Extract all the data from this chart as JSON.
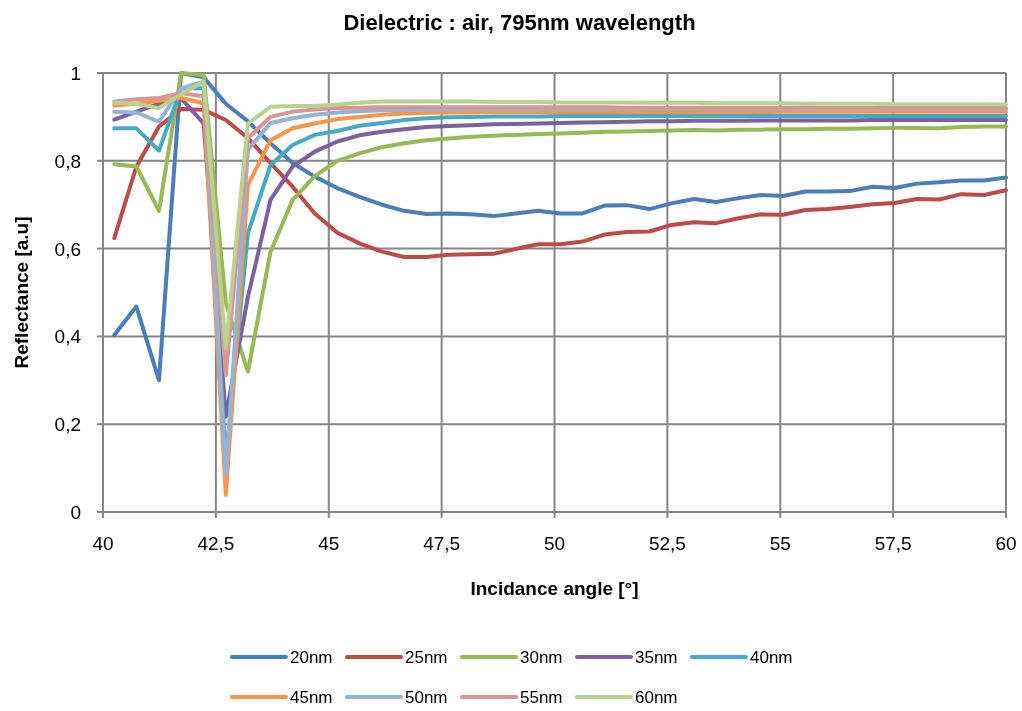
{
  "chart_data": {
    "type": "line",
    "title": "Dielectric : air, 795nm wavelength",
    "xlabel": "Incidance angle [°]",
    "ylabel": "Reflectance [a.u]",
    "x": [
      40.25,
      40.74,
      41.24,
      41.73,
      42.23,
      42.72,
      43.21,
      43.71,
      44.2,
      44.69,
      45.19,
      45.68,
      46.18,
      46.67,
      47.16,
      47.66,
      48.15,
      48.64,
      49.14,
      49.63,
      50.13,
      50.62,
      51.11,
      51.61,
      52.1,
      52.59,
      53.09,
      53.58,
      54.08,
      54.57,
      55.06,
      55.56,
      56.05,
      56.54,
      57.04,
      57.53,
      58.03,
      58.52,
      59.01,
      59.51,
      60.0
    ],
    "xlim": [
      40,
      60
    ],
    "xticks": [
      40,
      {
        "value": 42.5,
        "label": "42,5"
      },
      45,
      {
        "value": 47.5,
        "label": "47,5"
      },
      50,
      {
        "value": 52.5,
        "label": "52,5"
      },
      55,
      {
        "value": 57.5,
        "label": "57,5"
      },
      60
    ],
    "ylim": [
      0,
      1
    ],
    "yticks": [
      0,
      {
        "value": 0.2,
        "label": "0,2"
      },
      {
        "value": 0.4,
        "label": "0,4"
      },
      {
        "value": 0.6,
        "label": "0,6"
      },
      {
        "value": 0.8,
        "label": "0,8"
      },
      1
    ],
    "grid": true,
    "legend": "bottom",
    "marker": "none",
    "line_style": "solid",
    "series": [
      {
        "name": "20nm",
        "color": "#4a7ebb",
        "values": [
          0.403,
          0.468,
          0.3,
          1.0,
          0.99,
          0.93,
          0.89,
          0.84,
          0.795,
          0.764,
          0.738,
          0.718,
          0.7,
          0.686,
          0.679,
          0.68,
          0.678,
          0.674,
          0.68,
          0.686,
          0.68,
          0.68,
          0.698,
          0.699,
          0.69,
          0.703,
          0.713,
          0.706,
          0.715,
          0.722,
          0.72,
          0.73,
          0.73,
          0.731,
          0.741,
          0.738,
          0.748,
          0.751,
          0.755,
          0.755,
          0.762
        ]
      },
      {
        "name": "25nm",
        "color": "#be4b48",
        "values": [
          0.624,
          0.787,
          0.878,
          0.918,
          0.916,
          0.893,
          0.852,
          0.795,
          0.741,
          0.68,
          0.636,
          0.612,
          0.593,
          0.581,
          0.581,
          0.586,
          0.587,
          0.588,
          0.599,
          0.61,
          0.61,
          0.616,
          0.632,
          0.638,
          0.639,
          0.654,
          0.66,
          0.658,
          0.669,
          0.678,
          0.677,
          0.688,
          0.69,
          0.695,
          0.701,
          0.704,
          0.713,
          0.712,
          0.724,
          0.722,
          0.733
        ]
      },
      {
        "name": "30nm",
        "color": "#98b954",
        "values": [
          0.792,
          0.787,
          0.686,
          1.0,
          0.995,
          0.476,
          0.32,
          0.593,
          0.711,
          0.765,
          0.8,
          0.817,
          0.831,
          0.84,
          0.847,
          0.851,
          0.855,
          0.857,
          0.859,
          0.861,
          0.862,
          0.864,
          0.866,
          0.867,
          0.868,
          0.869,
          0.87,
          0.869,
          0.871,
          0.871,
          0.872,
          0.872,
          0.873,
          0.873,
          0.874,
          0.875,
          0.875,
          0.874,
          0.877,
          0.878,
          0.878
        ]
      },
      {
        "name": "35nm",
        "color": "#7d60a0",
        "values": [
          0.894,
          0.912,
          0.93,
          0.942,
          0.885,
          0.217,
          0.49,
          0.711,
          0.787,
          0.821,
          0.844,
          0.858,
          0.866,
          0.872,
          0.877,
          0.879,
          0.881,
          0.883,
          0.884,
          0.885,
          0.886,
          0.887,
          0.888,
          0.889,
          0.89,
          0.89,
          0.891,
          0.891,
          0.891,
          0.892,
          0.892,
          0.892,
          0.892,
          0.892,
          0.893,
          0.893,
          0.893,
          0.893,
          0.893,
          0.893,
          0.893
        ]
      },
      {
        "name": "40nm",
        "color": "#46aac5",
        "values": [
          0.874,
          0.874,
          0.823,
          0.965,
          0.965,
          0.12,
          0.635,
          0.79,
          0.836,
          0.859,
          0.868,
          0.88,
          0.886,
          0.893,
          0.897,
          0.899,
          0.9,
          0.901,
          0.901,
          0.901,
          0.902,
          0.902,
          0.902,
          0.902,
          0.902,
          0.902,
          0.902,
          0.902,
          0.902,
          0.902,
          0.902,
          0.902,
          0.902,
          0.902,
          0.902,
          0.902,
          0.902,
          0.902,
          0.902,
          0.902,
          0.902
        ]
      },
      {
        "name": "45nm",
        "color": "#f79646",
        "values": [
          0.926,
          0.93,
          0.937,
          0.943,
          0.931,
          0.039,
          0.745,
          0.847,
          0.874,
          0.885,
          0.895,
          0.9,
          0.905,
          0.908,
          0.909,
          0.91,
          0.91,
          0.911,
          0.911,
          0.911,
          0.911,
          0.911,
          0.911,
          0.911,
          0.911,
          0.911,
          0.911,
          0.911,
          0.911,
          0.911,
          0.912,
          0.912,
          0.912,
          0.912,
          0.912,
          0.912,
          0.912,
          0.912,
          0.912,
          0.912,
          0.912
        ]
      },
      {
        "name": "50nm",
        "color": "#95b3d7",
        "values": [
          0.912,
          0.91,
          0.889,
          0.965,
          0.98,
          0.084,
          0.825,
          0.886,
          0.897,
          0.905,
          0.91,
          0.913,
          0.915,
          0.916,
          0.917,
          0.917,
          0.918,
          0.918,
          0.918,
          0.918,
          0.918,
          0.918,
          0.918,
          0.918,
          0.918,
          0.918,
          0.918,
          0.918,
          0.918,
          0.918,
          0.918,
          0.918,
          0.918,
          0.918,
          0.918,
          0.918,
          0.918,
          0.918,
          0.918,
          0.918,
          0.918
        ]
      },
      {
        "name": "55nm",
        "color": "#d99694",
        "values": [
          0.935,
          0.94,
          0.943,
          0.954,
          0.947,
          0.312,
          0.852,
          0.9,
          0.912,
          0.917,
          0.92,
          0.921,
          0.922,
          0.922,
          0.922,
          0.922,
          0.922,
          0.922,
          0.922,
          0.922,
          0.922,
          0.922,
          0.922,
          0.921,
          0.921,
          0.921,
          0.921,
          0.921,
          0.921,
          0.921,
          0.921,
          0.921,
          0.92,
          0.92,
          0.92,
          0.92,
          0.92,
          0.92,
          0.92,
          0.92,
          0.92
        ]
      },
      {
        "name": "60nm",
        "color": "#b9d28f",
        "values": [
          0.932,
          0.93,
          0.92,
          0.952,
          0.98,
          0.373,
          0.885,
          0.923,
          0.925,
          0.925,
          0.928,
          0.932,
          0.935,
          0.935,
          0.935,
          0.935,
          0.935,
          0.934,
          0.934,
          0.934,
          0.933,
          0.933,
          0.933,
          0.933,
          0.932,
          0.932,
          0.932,
          0.931,
          0.931,
          0.931,
          0.931,
          0.93,
          0.93,
          0.93,
          0.93,
          0.929,
          0.929,
          0.929,
          0.929,
          0.929,
          0.928
        ]
      }
    ]
  }
}
